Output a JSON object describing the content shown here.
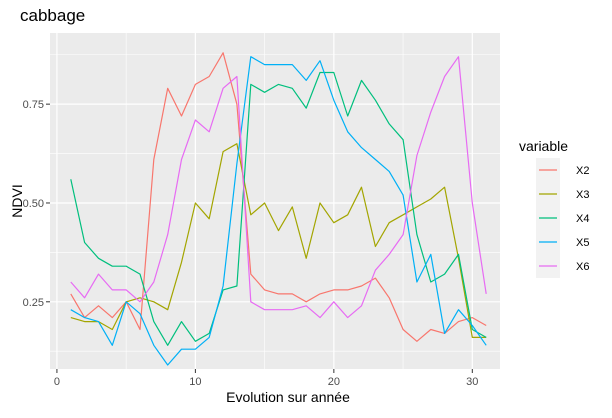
{
  "chart_data": {
    "type": "line",
    "title": "cabbage",
    "xlabel": "Evolution sur année",
    "ylabel": "NDVI",
    "xlim": [
      -0.5,
      32
    ],
    "ylim": [
      0.08,
      0.93
    ],
    "x_ticks": [
      0,
      10,
      20,
      30
    ],
    "y_ticks": [
      0.25,
      0.5,
      0.75
    ],
    "y_tick_labels": [
      "0.25",
      "0.50",
      "0.75"
    ],
    "grid": true,
    "legend": {
      "title": "variable",
      "position": "right"
    },
    "x": [
      1,
      2,
      3,
      4,
      5,
      6,
      7,
      8,
      9,
      10,
      11,
      12,
      13,
      14,
      15,
      16,
      17,
      18,
      19,
      20,
      21,
      22,
      23,
      24,
      25,
      26,
      27,
      28,
      29,
      30,
      31
    ],
    "series": [
      {
        "name": "X2",
        "color": "#F8766D",
        "values": [
          0.27,
          0.21,
          0.24,
          0.21,
          0.25,
          0.18,
          0.61,
          0.79,
          0.72,
          0.8,
          0.82,
          0.88,
          0.75,
          0.32,
          0.28,
          0.27,
          0.27,
          0.25,
          0.27,
          0.28,
          0.28,
          0.29,
          0.31,
          0.26,
          0.18,
          0.15,
          0.18,
          0.17,
          0.2,
          0.21,
          0.19
        ]
      },
      {
        "name": "X3",
        "color": "#A3A500",
        "values": [
          0.21,
          0.2,
          0.2,
          0.18,
          0.25,
          0.26,
          0.25,
          0.23,
          0.35,
          0.5,
          0.46,
          0.63,
          0.65,
          0.47,
          0.5,
          0.43,
          0.49,
          0.36,
          0.5,
          0.45,
          0.47,
          0.54,
          0.39,
          0.45,
          0.47,
          0.49,
          0.51,
          0.54,
          0.36,
          0.16,
          0.16
        ]
      },
      {
        "name": "X4",
        "color": "#00BF7D",
        "values": [
          0.56,
          0.4,
          0.36,
          0.34,
          0.34,
          0.32,
          0.2,
          0.14,
          0.2,
          0.15,
          0.17,
          0.28,
          0.29,
          0.8,
          0.78,
          0.8,
          0.79,
          0.74,
          0.83,
          0.83,
          0.72,
          0.81,
          0.76,
          0.7,
          0.66,
          0.42,
          0.3,
          0.32,
          0.37,
          0.18,
          0.16
        ]
      },
      {
        "name": "X5",
        "color": "#00B0F6",
        "values": [
          0.23,
          0.21,
          0.2,
          0.14,
          0.25,
          0.22,
          0.14,
          0.09,
          0.13,
          0.13,
          0.16,
          0.29,
          0.6,
          0.87,
          0.85,
          0.85,
          0.85,
          0.81,
          0.86,
          0.76,
          0.68,
          0.64,
          0.61,
          0.58,
          0.52,
          0.3,
          0.37,
          0.17,
          0.23,
          0.19,
          0.14
        ]
      },
      {
        "name": "X6",
        "color": "#E76BF3",
        "values": [
          0.3,
          0.26,
          0.32,
          0.28,
          0.28,
          0.25,
          0.3,
          0.42,
          0.61,
          0.71,
          0.68,
          0.79,
          0.82,
          0.25,
          0.23,
          0.23,
          0.23,
          0.24,
          0.21,
          0.25,
          0.21,
          0.24,
          0.33,
          0.37,
          0.42,
          0.62,
          0.73,
          0.82,
          0.87,
          0.5,
          0.27
        ]
      }
    ]
  }
}
